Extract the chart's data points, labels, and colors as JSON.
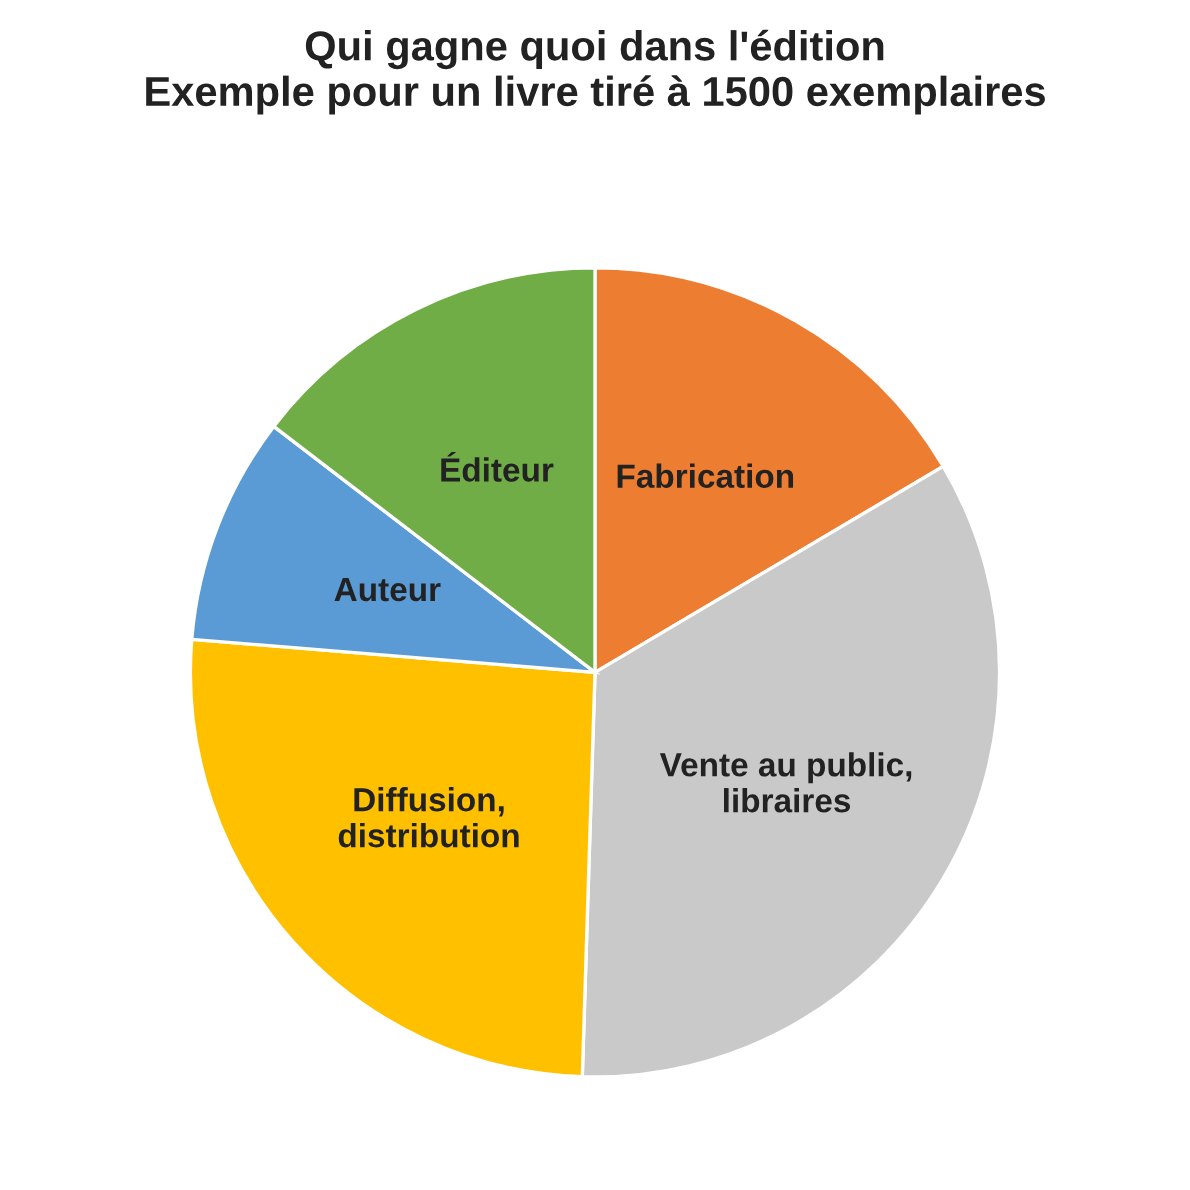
{
  "chart_data": {
    "type": "pie",
    "title": "Qui gagne quoi dans l'édition\nExemple pour un livre tiré à 1500 exemplaires",
    "categories": [
      "Fabrication",
      "Vente au public,\nlibraires",
      "Diffusion,\ndistribution",
      "Auteur",
      "Éditeur"
    ],
    "values": [
      16.5,
      34,
      25.8,
      9.1,
      14.6
    ],
    "colors": [
      "#ed7d31",
      "#c9c9c9",
      "#ffc000",
      "#5b9bd5",
      "#70ad47"
    ],
    "legend": false
  }
}
